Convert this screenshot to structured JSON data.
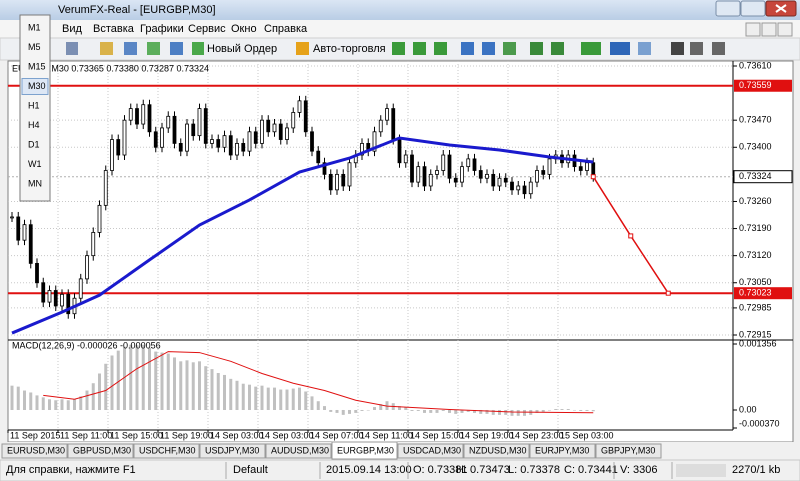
{
  "window": {
    "title": "VerumFX-Real - [EURGBP,M30]"
  },
  "menu": [
    "Вид",
    "Вставка",
    "Графики",
    "Сервис",
    "Окно",
    "Справка"
  ],
  "toolbar": {
    "new_order": "Новый Ордер",
    "autotrading": "Авто-торговля"
  },
  "timeframes": [
    "M1",
    "M5",
    "M15",
    "M30",
    "H1",
    "H4",
    "D1",
    "W1",
    "MN"
  ],
  "active_timeframe": 3,
  "chart": {
    "header": "EURGBP,M30  0.73365 0.73380 0.73287 0.73324",
    "ylim": [
      0.72915,
      0.7361
    ],
    "yticks": [
      {
        "value": 0.7361,
        "label": "0.73610"
      },
      {
        "value": 0.7347,
        "label": "0.73470"
      },
      {
        "value": 0.734,
        "label": "0.73400"
      },
      {
        "value": 0.7326,
        "label": "0.73260"
      },
      {
        "value": 0.7319,
        "label": "0.73190"
      },
      {
        "value": 0.7312,
        "label": "0.73120"
      },
      {
        "value": 0.7305,
        "label": "0.73050"
      },
      0.72985,
      0.72915
    ],
    "levels": [
      0.73559,
      0.73023
    ],
    "current_price": 0.73324,
    "closes": [
      0.7322,
      0.7316,
      0.732,
      0.731,
      0.7305,
      0.73,
      0.7303,
      0.7299,
      0.7302,
      0.7297,
      0.7301,
      0.7306,
      0.7312,
      0.7318,
      0.7325,
      0.7334,
      0.7342,
      0.7338,
      0.7347,
      0.735,
      0.7346,
      0.7351,
      0.7344,
      0.734,
      0.7345,
      0.7348,
      0.7341,
      0.7339,
      0.7346,
      0.7343,
      0.735,
      0.7341,
      0.7342,
      0.734,
      0.7343,
      0.7338,
      0.7341,
      0.7339,
      0.7344,
      0.7341,
      0.7347,
      0.7344,
      0.7346,
      0.7342,
      0.7345,
      0.7349,
      0.7352,
      0.7344,
      0.7339,
      0.7336,
      0.7333,
      0.7329,
      0.7333,
      0.733,
      0.7336,
      0.7338,
      0.7341,
      0.7339,
      0.7344,
      0.7347,
      0.735,
      0.7342,
      0.7336,
      0.7338,
      0.7331,
      0.7335,
      0.733,
      0.7333,
      0.7334,
      0.7338,
      0.7332,
      0.7331,
      0.7335,
      0.7337,
      0.7334,
      0.7332,
      0.7333,
      0.733,
      0.7332,
      0.7331,
      0.7329,
      0.733,
      0.7328,
      0.7331,
      0.7334,
      0.7333,
      0.7337,
      0.7338,
      0.7336,
      0.7338,
      0.7335,
      0.7334,
      0.7336,
      0.73324
    ],
    "moving_average": {
      "color": "#1a1acd",
      "bars": [
        0,
        8,
        14,
        22,
        30,
        38,
        46,
        54,
        62,
        70,
        78,
        86,
        93
      ],
      "values": [
        0.7292,
        0.72974,
        0.73018,
        0.73109,
        0.73199,
        0.73264,
        0.73336,
        0.73372,
        0.73424,
        0.73406,
        0.73393,
        0.73375,
        0.73362
      ]
    },
    "forecast": {
      "color": "#e01010",
      "bars": [
        93,
        99,
        105
      ],
      "values": [
        0.73324,
        0.73171,
        0.73023
      ]
    },
    "time_labels": [
      "11 Sep 2015",
      "11 Sep 11:00",
      "11 Sep 15:00",
      "11 Sep 19:00",
      "14 Sep 03:00",
      "14 Sep 03:00",
      "14 Sep 07:00",
      "14 Sep 11:00",
      "14 Sep 15:00",
      "14 Sep 19:00",
      "14 Sep 23:00",
      "15 Sep 03:00"
    ]
  },
  "macd": {
    "header": "MACD(12,26,9) -0.000026 -0.000056",
    "ylim": [
      -0.00037,
      0.001356
    ],
    "yticks": [
      0.001356,
      {
        "value": 0,
        "label": "0.00"
      },
      {
        "value": -0.00037,
        "label": "-0.000370"
      }
    ],
    "histogram": [
      0.0005,
      0.00048,
      0.0004,
      0.00036,
      0.0003,
      0.00026,
      0.00022,
      0.0002,
      0.00022,
      0.0002,
      0.00022,
      0.00028,
      0.0004,
      0.00055,
      0.00075,
      0.00095,
      0.00112,
      0.00122,
      0.0013,
      0.00134,
      0.00133,
      0.00134,
      0.00128,
      0.0012,
      0.00118,
      0.00116,
      0.00108,
      0.001,
      0.00102,
      0.00098,
      0.001,
      0.0009,
      0.00084,
      0.00076,
      0.00072,
      0.00064,
      0.0006,
      0.00054,
      0.00052,
      0.00048,
      0.0005,
      0.00046,
      0.00046,
      0.00042,
      0.00042,
      0.00044,
      0.00046,
      0.00038,
      0.00028,
      0.00018,
      8e-05,
      -4e-05,
      -6e-05,
      -0.0001,
      -8e-05,
      -6e-05,
      -2e-05,
      0,
      6e-05,
      0.00012,
      0.00018,
      0.00014,
      8e-05,
      6e-05,
      -2e-05,
      -2e-05,
      -6e-05,
      -6e-05,
      -6e-05,
      -2e-05,
      -6e-05,
      -8e-05,
      -6e-05,
      -4e-05,
      -6e-05,
      -8e-05,
      -8e-05,
      -0.0001,
      -0.0001,
      -0.0001,
      -0.00012,
      -0.00012,
      -0.00012,
      -0.0001,
      -6e-05,
      -4e-05,
      0,
      2e-05,
      2e-05,
      2e-05,
      0,
      -2e-05,
      -2e-05,
      -2.6e-05
    ],
    "signal": {
      "color": "#e01010",
      "bars": [
        5,
        10,
        15,
        20,
        25,
        30,
        35,
        40,
        45,
        50,
        55,
        60,
        70,
        80,
        93
      ],
      "values": [
        0.0003,
        0.00022,
        0.0004,
        0.00085,
        0.0012,
        0.00118,
        0.001,
        0.00075,
        0.00055,
        0.0004,
        0.0002,
        8e-05,
        1e-05,
        -4e-05,
        -5.6e-05
      ]
    }
  },
  "tabs": [
    "EURUSD,M30",
    "GBPUSD,M30",
    "USDCHF,M30",
    "USDJPY,M30",
    "AUDUSD,M30",
    "EURGBP,M30",
    "USDCAD,M30",
    "NZDUSD,M30",
    "EURJPY,M30",
    "GBPJPY,M30"
  ],
  "active_tab": 5,
  "status": {
    "help": "Для справки, нажмите F1",
    "profile": "Default",
    "time": "2015.09.14 13:00",
    "open": "O: 0.73381",
    "high": "H: 0.73473",
    "low": "L: 0.73378",
    "close": "C: 0.73441",
    "volume": "V: 3306",
    "traffic": "2270/1 kb"
  }
}
